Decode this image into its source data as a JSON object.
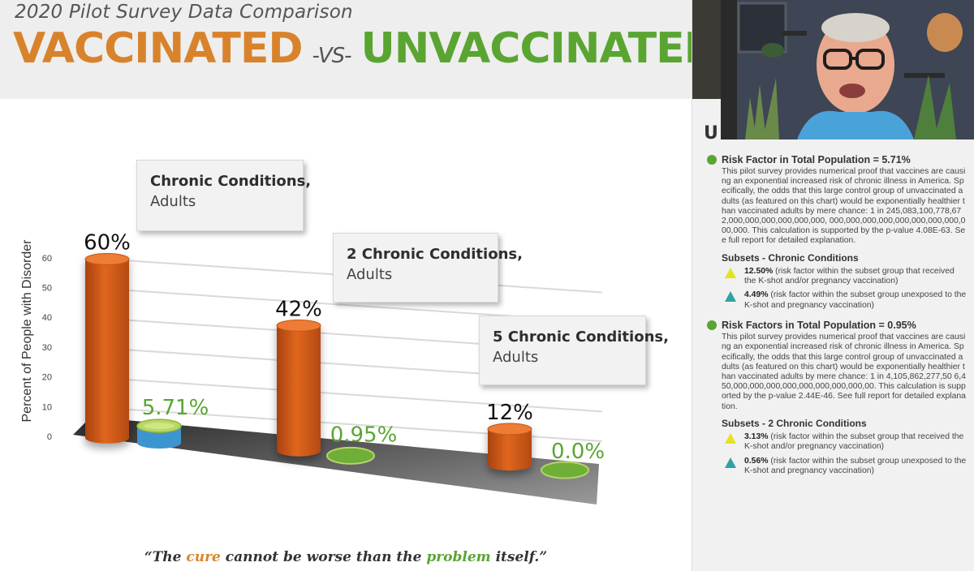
{
  "header": {
    "subtitle": "2020 Pilot Survey Data Comparison",
    "title_left": "VACCINATED",
    "title_vs": "-VS-",
    "title_right": "UNVACCINATED"
  },
  "colors": {
    "vaccinated": "#d8832b",
    "unvaccinated": "#5aa532",
    "bar_orange": "#e0661e",
    "green_light": "#b9d764",
    "blue_base": "#3d95cf"
  },
  "callouts": [
    {
      "title": "Chronic Conditions,",
      "sub": "Adults"
    },
    {
      "title": "2 Chronic Conditions,",
      "sub": "Adults"
    },
    {
      "title": "5 Chronic Conditions,",
      "sub": "Adults"
    }
  ],
  "chart_data": {
    "type": "bar",
    "categories": [
      "Chronic Conditions, Adults",
      "2 Chronic Conditions, Adults",
      "5 Chronic Conditions, Adults"
    ],
    "series": [
      {
        "values": [
          60,
          42,
          12
        ],
        "labels": [
          "60%",
          "42%",
          "12%"
        ]
      },
      {
        "values": [
          5.71,
          0.95,
          0.0
        ],
        "labels": [
          "5.71%",
          "0.95%",
          "0.0%"
        ]
      }
    ],
    "ylabel": "Percent of People with Disorder",
    "yticks": [
      0,
      10,
      20,
      30,
      40,
      50,
      60
    ],
    "ylim": [
      0,
      60
    ]
  },
  "quote": {
    "open": "“The ",
    "cure": "cure",
    "mid": " cannot be worse than the ",
    "problem": "problem",
    "close": " itself.”"
  },
  "side_panel": {
    "heading": "U",
    "sections": [
      {
        "title": "Risk Factor in Total Population = 5.71%",
        "body": "This pilot survey provides numerical proof that vaccines are causing an exponential increased risk of chronic illness in America. Specifically, the odds that this large control group of unvaccinated adults (as featured on this chart) would be exponentially healthier than vaccinated adults by mere chance: 1 in 245,083,100,778,672,000,000,000,000,000,000, 000,000,000,000,000,000,000,000,000,000. This calculation is supported by the p-value 4.08E-63. See full report for detailed explanation.",
        "subset_title": "Subsets - Chronic Conditions",
        "subsets": [
          {
            "value": "12.50%",
            "text": " (risk factor within the subset group that received the K-shot and/or pregnancy vaccination)"
          },
          {
            "value": "4.49%",
            "text": " (risk factor within the subset group unexposed to the K-shot and pregnancy vaccination)"
          }
        ]
      },
      {
        "title": "Risk Factors in Total Population = 0.95%",
        "body": "This pilot survey provides numerical proof that vaccines are causing an exponential increased risk of chronic illness in America. Specifically, the odds that this large control group of unvaccinated adults (as featured on this chart) would be exponentially healthier than vaccinated adults by mere chance: 1 in 4,105,862,277,50 6,450,000,000,000,000,000,000,000,000,00. This calculation is supported by the p-value 2.44E-46. See full report for detailed explanation.",
        "subset_title": "Subsets - 2 Chronic Conditions",
        "subsets": [
          {
            "value": "3.13%",
            "text": " (risk factor within the subset group that received the K-shot and/or pregnancy vaccination)"
          },
          {
            "value": "0.56%",
            "text": " (risk factor within the subset group unexposed to the K-shot and pregnancy vaccination)"
          }
        ]
      }
    ]
  }
}
